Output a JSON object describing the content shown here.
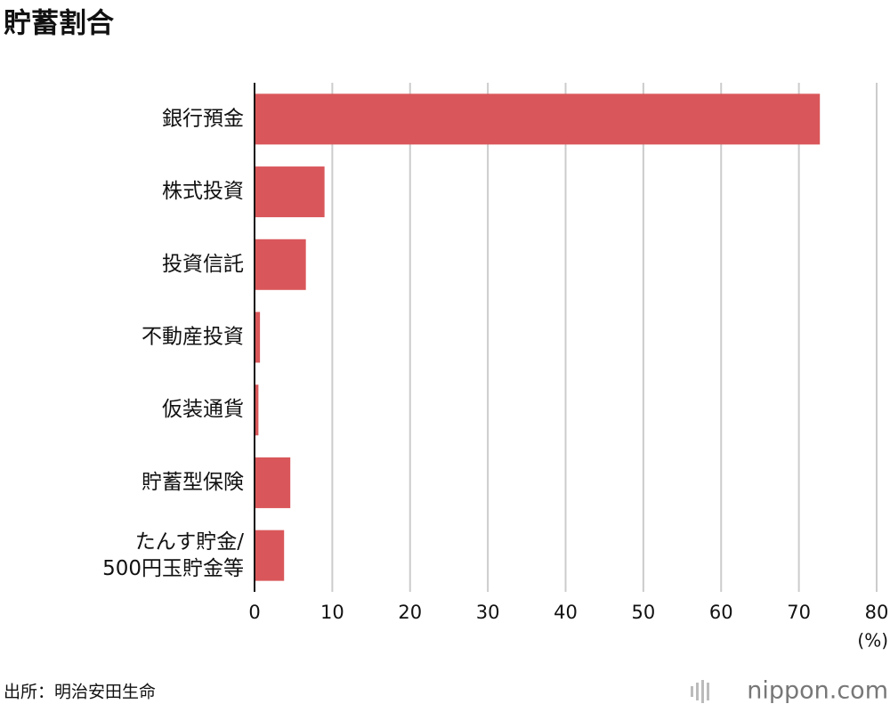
{
  "chart_data": {
    "type": "bar",
    "orientation": "horizontal",
    "title": "貯蓄割合",
    "categories": [
      "銀行預金",
      "株式投資",
      "投資信託",
      "不動産投資",
      "仮装通貨",
      "貯蓄型保険",
      "たんす貯金/\n500円玉貯金等"
    ],
    "values": [
      72.7,
      9.0,
      6.6,
      0.7,
      0.5,
      4.6,
      3.8
    ],
    "color": "#d9575a",
    "xlim": [
      0,
      80
    ],
    "xticks": [
      0,
      10,
      20,
      30,
      40,
      50,
      60,
      70,
      80
    ],
    "x_label": "(%)",
    "grid": true,
    "source": "出所：明治安田生命",
    "logo": "nippon.com"
  }
}
